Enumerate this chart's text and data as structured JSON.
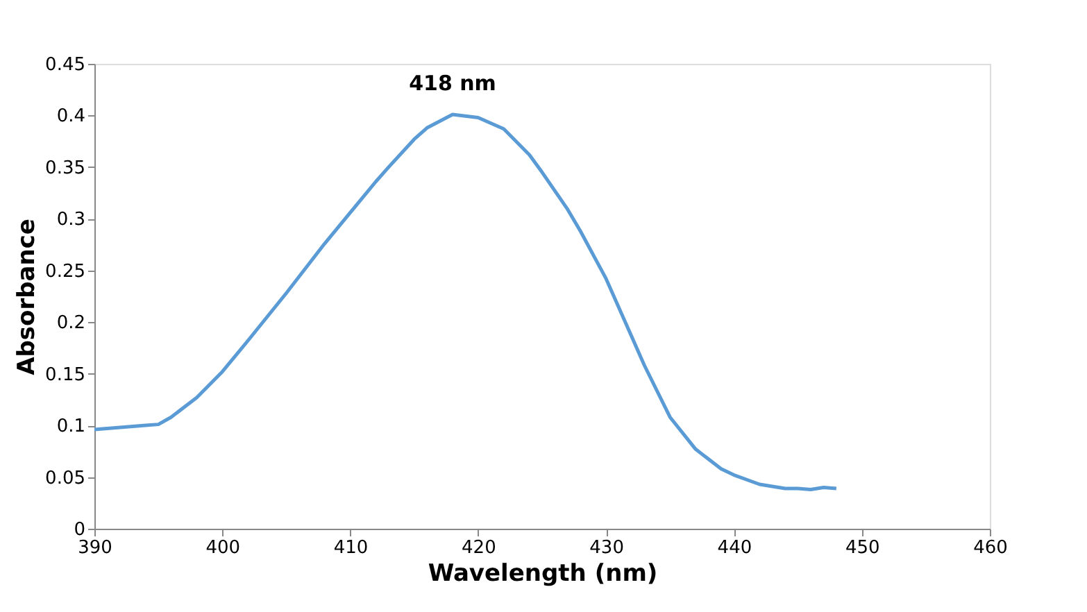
{
  "chart_data": {
    "type": "line",
    "xlabel": "Wavelength (nm)",
    "ylabel": "Absorbance",
    "x": [
      390,
      392,
      394,
      395,
      396,
      398,
      400,
      402,
      405,
      408,
      410,
      412,
      413,
      415,
      416,
      418,
      420,
      422,
      424,
      425,
      427,
      428,
      430,
      432,
      433,
      435,
      437,
      439,
      440,
      442,
      444,
      445,
      446,
      447,
      448
    ],
    "series": [
      {
        "color": "#5b9bd5",
        "values": [
          0.096,
          0.098,
          0.1,
          0.101,
          0.108,
          0.127,
          0.152,
          0.182,
          0.228,
          0.276,
          0.306,
          0.336,
          0.35,
          0.377,
          0.388,
          0.401,
          0.398,
          0.387,
          0.362,
          0.345,
          0.309,
          0.288,
          0.242,
          0.186,
          0.158,
          0.108,
          0.077,
          0.058,
          0.052,
          0.043,
          0.039,
          0.039,
          0.038,
          0.04,
          0.039
        ]
      }
    ],
    "xlim": [
      390,
      460
    ],
    "xticks": [
      390,
      400,
      410,
      420,
      430,
      440,
      450,
      460
    ],
    "ylim": [
      0,
      0.45
    ],
    "yticks": [
      0,
      0.05,
      0.1,
      0.15,
      0.2,
      0.25,
      0.3,
      0.35,
      0.4,
      0.45
    ],
    "annotations": [
      "418 nm"
    ],
    "grid": false,
    "marker": "none",
    "line_style": "solid"
  }
}
